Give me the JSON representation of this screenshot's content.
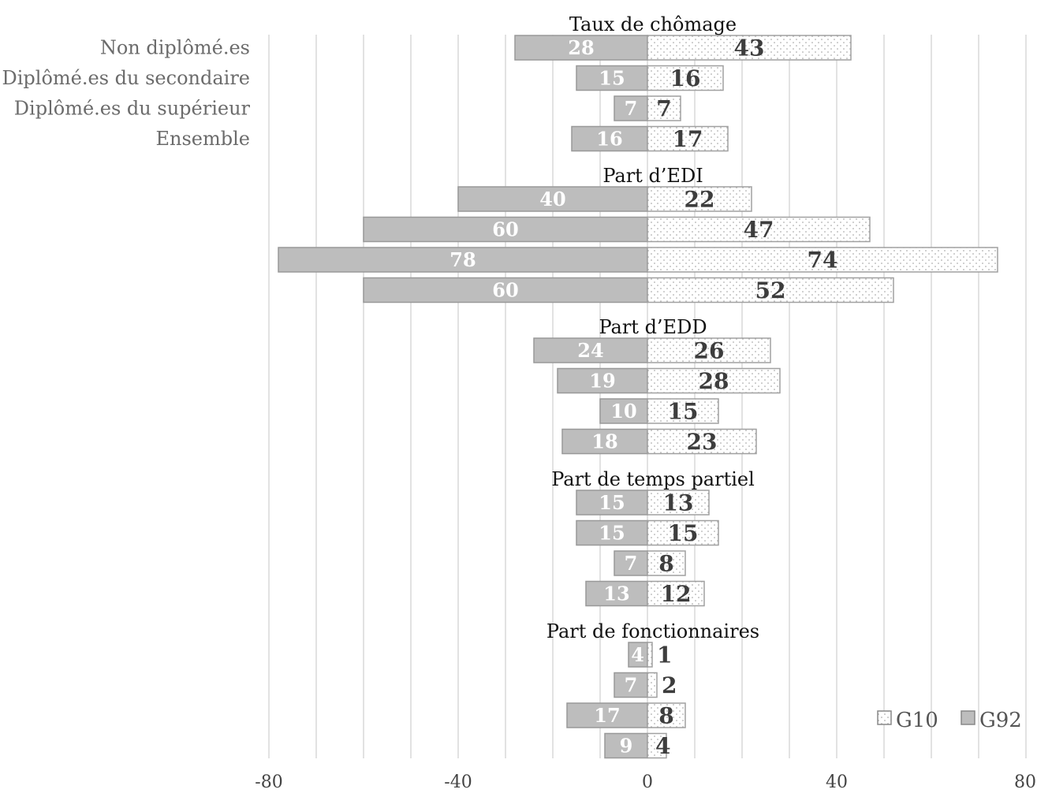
{
  "chart_data": {
    "type": "bar",
    "orientation": "horizontal-diverging",
    "categories": [
      "Non diplômé.es",
      "Diplômé.es du secondaire",
      "Diplômé.es du supérieur",
      "Ensemble"
    ],
    "groups": [
      {
        "title": "Taux de chômage",
        "G92": [
          28,
          15,
          7,
          16
        ],
        "G10": [
          43,
          16,
          7,
          17
        ]
      },
      {
        "title": "Part d’EDI",
        "G92": [
          40,
          60,
          78,
          60
        ],
        "G10": [
          22,
          47,
          74,
          52
        ]
      },
      {
        "title": "Part d’EDD",
        "G92": [
          24,
          19,
          10,
          18
        ],
        "G10": [
          26,
          28,
          15,
          23
        ]
      },
      {
        "title": "Part de temps partiel",
        "G92": [
          15,
          15,
          7,
          13
        ],
        "G10": [
          13,
          15,
          8,
          12
        ]
      },
      {
        "title": "Part de fonctionnaires",
        "G92": [
          4,
          7,
          17,
          9
        ],
        "G10": [
          1,
          2,
          8,
          4
        ]
      }
    ],
    "series": [
      {
        "name": "G10",
        "color": "#ffffff",
        "pattern": "dotted"
      },
      {
        "name": "G92",
        "color": "#bdbdbd"
      }
    ],
    "g92_plotted_as_negative": true,
    "xlim": [
      -80,
      80
    ],
    "xticks": [
      -80,
      -40,
      0,
      40,
      80
    ],
    "grid": true,
    "legend_position": "bottom-right"
  }
}
